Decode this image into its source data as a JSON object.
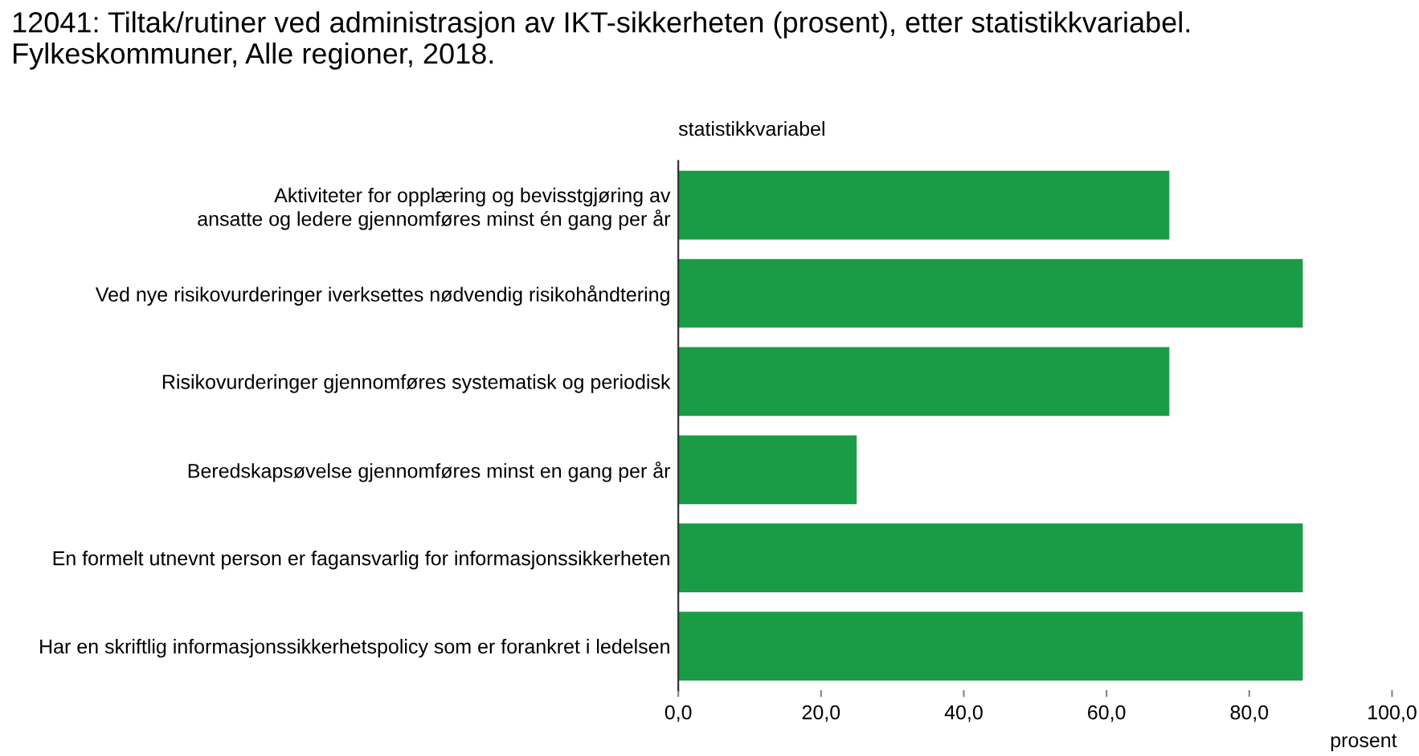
{
  "chart_data": {
    "type": "bar",
    "orientation": "horizontal",
    "title": "12041: Tiltak/rutiner ved administrasjon av IKT-sikkerheten (prosent), etter statistikkvariabel. Fylkeskommuner, Alle regioner, 2018.",
    "ylabel": "statistikkvariabel",
    "xlabel": "prosent",
    "categories": [
      "Aktiviteter for opplæring og bevisstgjøring av\nansatte og ledere gjennomføres minst én gang per år",
      "Ved nye risikovurderinger iverksettes nødvendig risikohåndtering",
      "Risikovurderinger gjennomføres systematisk og periodisk",
      "Beredskapsøvelse gjennomføres minst en gang per år",
      "En formelt utnevnt person er fagansvarlig for informasjonssikkerheten",
      "Har en skriftlig informasjonssikkerhetspolicy som er forankret i ledelsen"
    ],
    "values": [
      68.8,
      87.5,
      68.8,
      25.0,
      87.5,
      87.5
    ],
    "color": "#1a9c47",
    "xlim": [
      0,
      100
    ],
    "xticks": [
      {
        "value": 0,
        "label": "0,0"
      },
      {
        "value": 20,
        "label": "20,0"
      },
      {
        "value": 40,
        "label": "40,0"
      },
      {
        "value": 60,
        "label": "60,0"
      },
      {
        "value": 80,
        "label": "80,0"
      },
      {
        "value": 100,
        "label": "100,0"
      }
    ],
    "grid": false,
    "legend": false
  }
}
